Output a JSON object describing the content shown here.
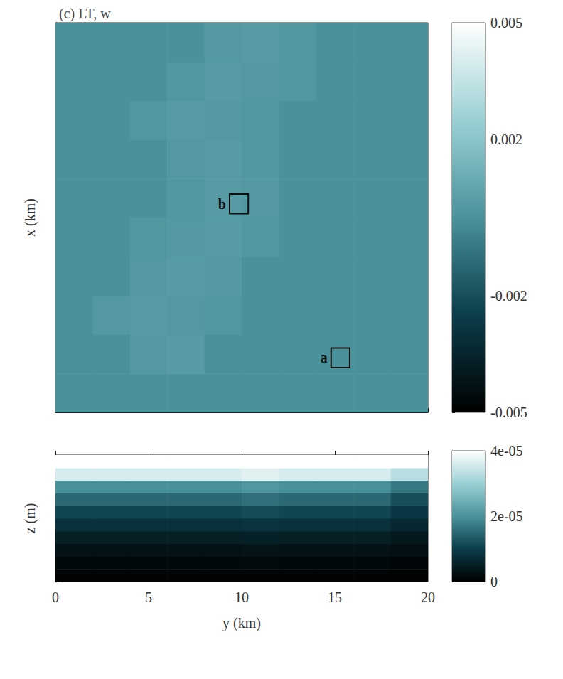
{
  "chart_data": [
    {
      "type": "heatmap",
      "title": "(c) LT, w",
      "ylabel": "x (km)",
      "xlim": [
        0,
        20
      ],
      "xticks": [
        0,
        5,
        10,
        15,
        20
      ],
      "ylim": [
        0,
        20
      ],
      "yticks": [
        0,
        5,
        10,
        15,
        20
      ],
      "tick_labels": false,
      "x": [
        1,
        3,
        5,
        7,
        9,
        11,
        13,
        15,
        17,
        19
      ],
      "y": [
        1,
        3,
        5,
        7,
        9,
        11,
        13,
        15,
        17,
        19
      ],
      "cells": [
        [
          0,
          0,
          0,
          0,
          0,
          0,
          0,
          0,
          0,
          0
        ],
        [
          0,
          0,
          0.0003,
          0.0004,
          0,
          0,
          0,
          0,
          0,
          0
        ],
        [
          0,
          0.0003,
          0.0004,
          0.0003,
          0.0002,
          0,
          0,
          0,
          0,
          0
        ],
        [
          0,
          0,
          0.0003,
          0.0004,
          0.0003,
          0,
          0,
          0,
          0,
          0
        ],
        [
          0,
          0,
          0.0002,
          0.0003,
          0.0004,
          0.0002,
          0,
          0,
          0,
          0
        ],
        [
          0,
          0,
          0,
          0.0002,
          0.0004,
          0.0003,
          0,
          0,
          0,
          0
        ],
        [
          0,
          0,
          0,
          0.0003,
          0.0004,
          0.0002,
          0,
          0,
          0,
          0
        ],
        [
          0,
          0,
          0.0002,
          0.0004,
          0.0003,
          0.0002,
          0,
          0,
          0,
          0
        ],
        [
          0,
          0,
          0,
          0.0002,
          0.0004,
          0.0003,
          0.0002,
          0,
          0,
          0
        ],
        [
          0,
          0,
          0,
          0,
          0.0003,
          0.0004,
          0.0002,
          0,
          0,
          0
        ]
      ],
      "colorbar": {
        "range": [
          -0.005,
          0.005
        ],
        "ticks": [
          -0.005,
          -0.002,
          0.002,
          0.005
        ]
      },
      "annotations": [
        {
          "text": "b",
          "x": [
            9.35,
            10.35
          ],
          "y": [
            10.2,
            11.2
          ]
        },
        {
          "text": "a",
          "x": [
            14.8,
            15.8
          ],
          "y": [
            2.3,
            3.3
          ]
        }
      ]
    },
    {
      "type": "heatmap",
      "xlabel": "y (km)",
      "ylabel": "z (m)",
      "xlim": [
        0,
        20
      ],
      "xticks": [
        0,
        5,
        10,
        15,
        20
      ],
      "ylim": [
        -100,
        0
      ],
      "yticks": [
        -100,
        -50,
        0
      ],
      "tick_labels": "x",
      "x": [
        1,
        3,
        5,
        7,
        9,
        11,
        13,
        15,
        17,
        19
      ],
      "y": [
        -95,
        -85,
        -75,
        -65,
        -55,
        -45,
        -35,
        -25,
        -15,
        -5
      ],
      "cells": [
        [
          5e-07,
          5e-07,
          5e-07,
          5e-07,
          5e-07,
          5e-07,
          5e-07,
          5e-07,
          5e-07,
          4e-07
        ],
        [
          1.5e-06,
          1.5e-06,
          1.5e-06,
          1.5e-06,
          1.5e-06,
          1.6e-06,
          1.5e-06,
          1.5e-06,
          1.5e-06,
          1.2e-06
        ],
        [
          3e-06,
          3e-06,
          3e-06,
          3e-06,
          3e-06,
          3.2e-06,
          3e-06,
          3e-06,
          3e-06,
          2.4e-06
        ],
        [
          5e-06,
          5e-06,
          5e-06,
          5e-06,
          5e-06,
          5.3e-06,
          5e-06,
          5e-06,
          5e-06,
          4e-06
        ],
        [
          8e-06,
          8e-06,
          8e-06,
          8e-06,
          8e-06,
          8.5e-06,
          8e-06,
          8e-06,
          8e-06,
          6.5e-06
        ],
        [
          1.1e-05,
          1.1e-05,
          1.1e-05,
          1.1e-05,
          1.1e-05,
          1.17e-05,
          1.1e-05,
          1.1e-05,
          1.1e-05,
          9e-06
        ],
        [
          1.5e-05,
          1.5e-05,
          1.5e-05,
          1.5e-05,
          1.5e-05,
          1.6e-05,
          1.5e-05,
          1.5e-05,
          1.5e-05,
          1.2e-05
        ],
        [
          2e-05,
          2e-05,
          2e-05,
          2e-05,
          2e-05,
          2.1e-05,
          2e-05,
          2e-05,
          2e-05,
          1.7e-05
        ],
        [
          3.6e-05,
          3.6e-05,
          3.6e-05,
          3.6e-05,
          3.6e-05,
          3.7e-05,
          3.6e-05,
          3.6e-05,
          3.6e-05,
          3.3e-05
        ],
        [
          4e-05,
          4e-05,
          4e-05,
          4e-05,
          4e-05,
          4e-05,
          4e-05,
          4e-05,
          4e-05,
          4e-05
        ]
      ],
      "colorbar": {
        "range": [
          0,
          4e-05
        ],
        "ticks": [
          0,
          {
            "value": 2e-05,
            "label": "2e-05"
          },
          {
            "value": 4e-05,
            "label": "4e-05"
          }
        ]
      }
    }
  ]
}
